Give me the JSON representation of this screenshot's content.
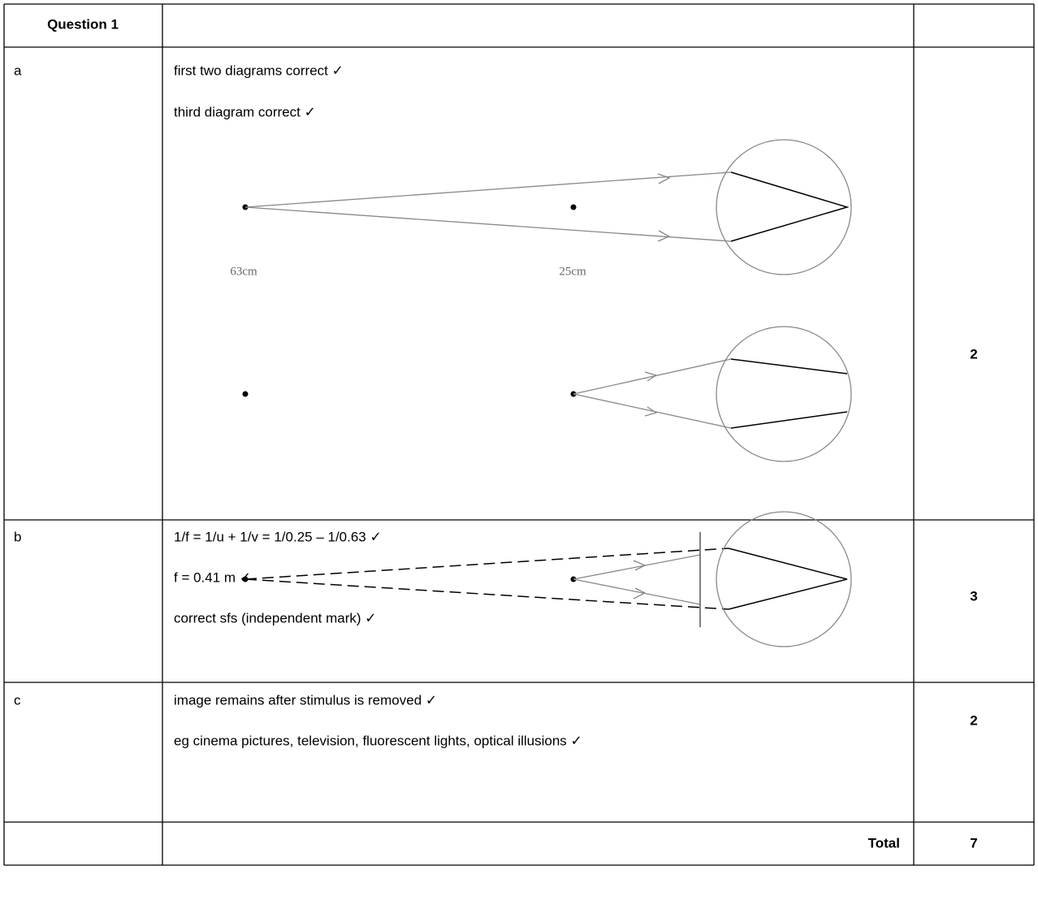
{
  "header": {
    "title": "Question 1"
  },
  "rows": [
    {
      "part": "a",
      "lines": [
        "first two diagrams correct ✓",
        "third diagram correct ✓"
      ],
      "mark": "2"
    },
    {
      "part": "b",
      "lines": [
        "1/f = 1/u + 1/v = 1/0.25 – 1/0.63 ✓",
        "f = 0.41 m ✓",
        "correct sfs (independent mark) ✓"
      ],
      "mark": "3"
    },
    {
      "part": "c",
      "lines": [
        "image remains after stimulus is removed ✓",
        "eg cinema pictures, television, fluorescent lights, optical illusions ✓"
      ],
      "mark": "2"
    }
  ],
  "diagram": {
    "labels": [
      "63cm",
      "25cm"
    ]
  },
  "total": {
    "label": "Total",
    "mark": "7"
  }
}
